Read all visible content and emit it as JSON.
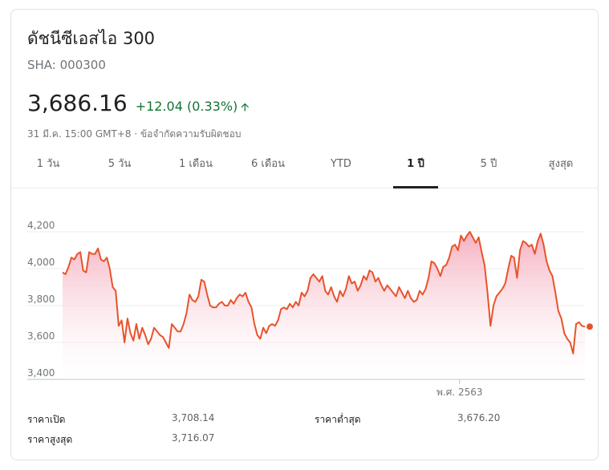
{
  "header": {
    "title": "ดัชนีซีเอสไอ 300",
    "ticker": "SHA: 000300",
    "price": "3,686.16",
    "change": "+12.04 (0.33%)",
    "change_color": "#137333",
    "timestamp": "31 มี.ค. 15:00 GMT+8 · ข้อจำกัดความรับผิดชอบ"
  },
  "tabs": [
    {
      "label": "1 วัน",
      "active": false
    },
    {
      "label": "5 วัน",
      "active": false
    },
    {
      "label": "1 เดือน",
      "active": false
    },
    {
      "label": "6 เดือน",
      "active": false
    },
    {
      "label": "YTD",
      "active": false
    },
    {
      "label": "1 ปี",
      "active": true
    },
    {
      "label": "5 ปี",
      "active": false
    },
    {
      "label": "สูงสุด",
      "active": false
    }
  ],
  "stats": {
    "open_label": "ราคาเปิด",
    "open_value": "3,708.14",
    "low_label": "ราคาต่ำสุด",
    "low_value": "3,676.20",
    "high_label": "ราคาสูงสุด",
    "high_value": "3,716.07"
  },
  "chart_data": {
    "type": "area",
    "line_color": "#e8532b",
    "fill_color": "#f8c9d4",
    "ylim": [
      3400,
      4250
    ],
    "yticks": [
      "4,200",
      "4,000",
      "3,800",
      "3,600",
      "3,400"
    ],
    "ytick_values": [
      4200,
      4000,
      3800,
      3600,
      3400
    ],
    "x_marker_label": "พ.ศ. 2563",
    "x_marker_index": 0.76,
    "values": [
      3980,
      3970,
      4010,
      4060,
      4050,
      4080,
      4090,
      3990,
      3980,
      4090,
      4080,
      4080,
      4110,
      4050,
      4040,
      4060,
      4000,
      3900,
      3880,
      3690,
      3720,
      3600,
      3730,
      3650,
      3610,
      3700,
      3620,
      3680,
      3640,
      3590,
      3620,
      3680,
      3660,
      3640,
      3630,
      3600,
      3570,
      3700,
      3680,
      3660,
      3660,
      3700,
      3760,
      3860,
      3830,
      3820,
      3850,
      3940,
      3930,
      3860,
      3800,
      3790,
      3790,
      3810,
      3820,
      3800,
      3800,
      3830,
      3810,
      3840,
      3860,
      3850,
      3870,
      3820,
      3790,
      3700,
      3640,
      3620,
      3680,
      3650,
      3690,
      3700,
      3690,
      3720,
      3780,
      3790,
      3780,
      3810,
      3790,
      3820,
      3800,
      3870,
      3850,
      3880,
      3950,
      3970,
      3950,
      3930,
      3960,
      3880,
      3860,
      3900,
      3850,
      3820,
      3880,
      3850,
      3890,
      3960,
      3920,
      3930,
      3880,
      3910,
      3960,
      3940,
      3990,
      3980,
      3930,
      3950,
      3910,
      3880,
      3910,
      3890,
      3870,
      3850,
      3900,
      3870,
      3840,
      3880,
      3840,
      3820,
      3830,
      3880,
      3860,
      3890,
      3950,
      4040,
      4030,
      4000,
      3960,
      4010,
      4020,
      4060,
      4120,
      4130,
      4100,
      4180,
      4150,
      4180,
      4200,
      4170,
      4140,
      4170,
      4090,
      4020,
      3870,
      3690,
      3800,
      3850,
      3870,
      3890,
      3920,
      4000,
      4070,
      4060,
      3950,
      4100,
      4150,
      4140,
      4120,
      4130,
      4080,
      4150,
      4190,
      4130,
      4040,
      3990,
      3960,
      3870,
      3770,
      3730,
      3650,
      3620,
      3600,
      3540,
      3700,
      3710,
      3690,
      3686
    ]
  }
}
